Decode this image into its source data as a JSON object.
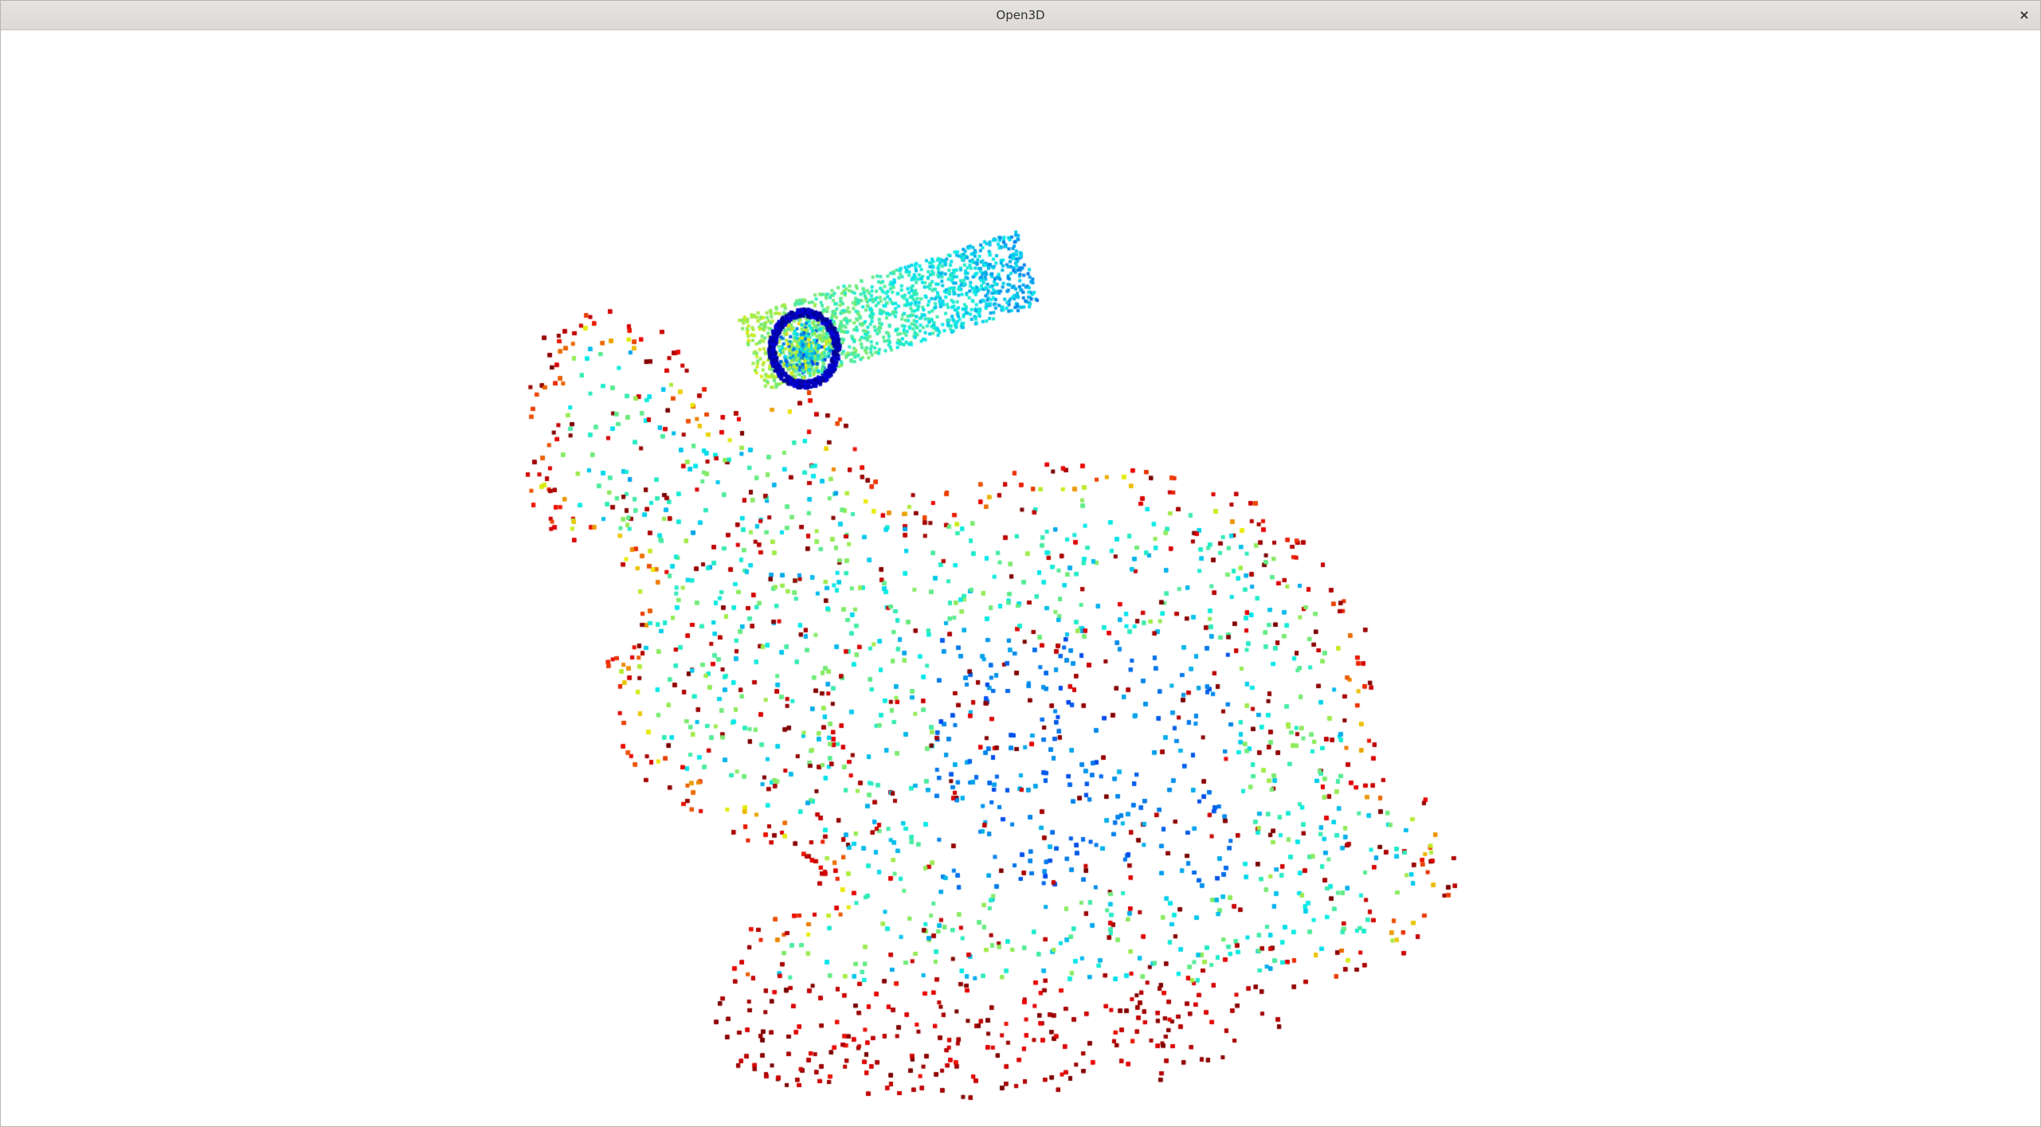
{
  "window": {
    "title": "Open3D",
    "close_glyph": "×"
  },
  "viewport": {
    "background": "#ffffff",
    "content": "point-cloud",
    "colormap": "jet",
    "point_color": "per-point",
    "point_shape": "square"
  }
}
